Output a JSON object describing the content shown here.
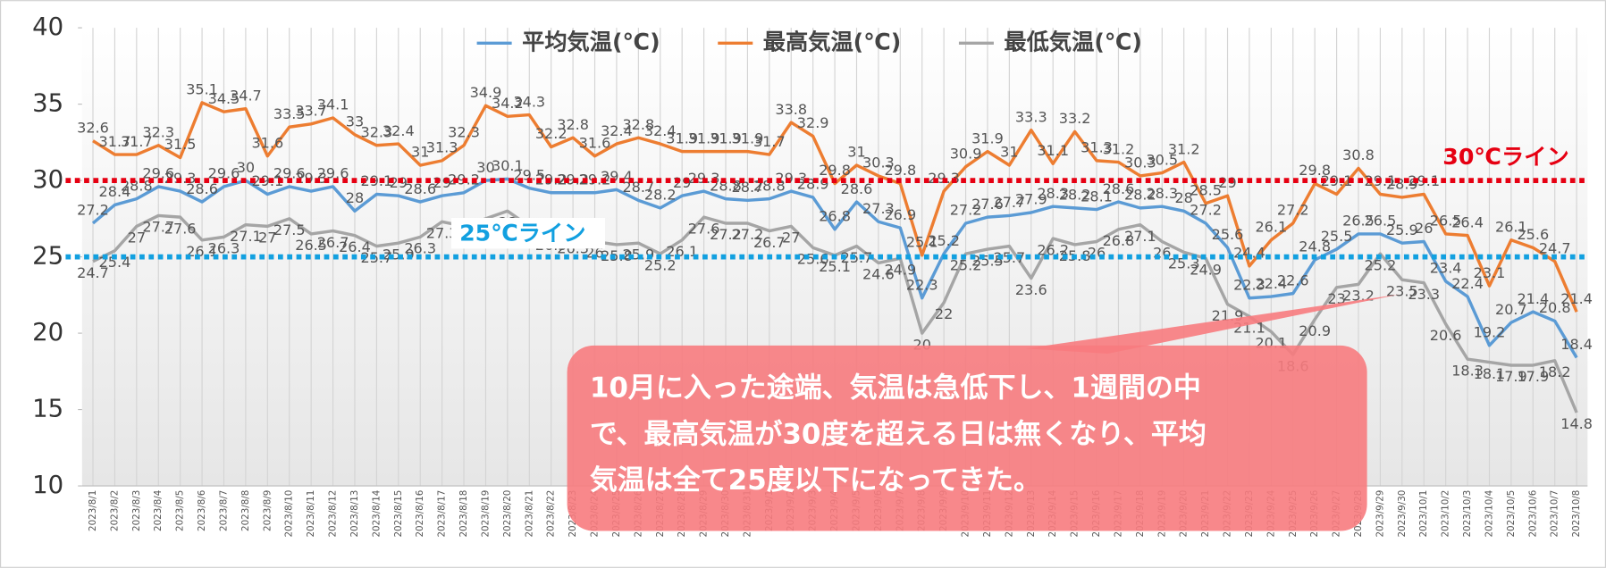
{
  "chart_data": {
    "type": "line",
    "categories": [
      "2023/8/1",
      "2023/8/2",
      "2023/8/3",
      "2023/8/4",
      "2023/8/5",
      "2023/8/6",
      "2023/8/7",
      "2023/8/8",
      "2023/8/9",
      "2023/8/10",
      "2023/8/11",
      "2023/8/12",
      "2023/8/13",
      "2023/8/14",
      "2023/8/15",
      "2023/8/16",
      "2023/8/17",
      "2023/8/18",
      "2023/8/19",
      "2023/8/20",
      "2023/8/21",
      "2023/8/22",
      "2023/8/23",
      "2023/8/24",
      "2023/8/25",
      "2023/8/26",
      "2023/8/27",
      "2023/8/28",
      "2023/8/29",
      "2023/8/30",
      "2023/8/31",
      "2023/9/1",
      "2023/9/2",
      "2023/9/3",
      "2023/9/4",
      "2023/9/5",
      "2023/9/6",
      "2023/9/7",
      "2023/9/8",
      "2023/9/9",
      "2023/9/10",
      "2023/9/11",
      "2023/9/12",
      "2023/9/13",
      "2023/9/14",
      "2023/9/15",
      "2023/9/16",
      "2023/9/17",
      "2023/9/18",
      "2023/9/19",
      "2023/9/20",
      "2023/9/21",
      "2023/9/22",
      "2023/9/23",
      "2023/9/24",
      "2023/9/25",
      "2023/9/26",
      "2023/9/27",
      "2023/9/28",
      "2023/9/29",
      "2023/9/30",
      "2023/10/1",
      "2023/10/2",
      "2023/10/3",
      "2023/10/4",
      "2023/10/5",
      "2023/10/6",
      "2023/10/7",
      "2023/10/8"
    ],
    "series": [
      {
        "name": "平均気温(℃)",
        "color": "#5b9bd5",
        "values": [
          27.2,
          28.4,
          28.8,
          29.6,
          29.3,
          28.6,
          29.6,
          30,
          29.1,
          29.6,
          29.3,
          29.6,
          28,
          29.1,
          29,
          28.6,
          29,
          29.2,
          30,
          30.1,
          29.5,
          29.2,
          29.2,
          29.2,
          29.4,
          28.7,
          28.2,
          29,
          29.3,
          28.8,
          28.7,
          28.8,
          29.3,
          28.9,
          26.8,
          28.6,
          27.3,
          26.9,
          22.3,
          25.2,
          27.2,
          27.6,
          27.7,
          27.9,
          28.3,
          28.2,
          28.1,
          28.6,
          28.2,
          28.3,
          28,
          27.2,
          25.6,
          22.3,
          22.4,
          22.6,
          24.8,
          25.5,
          26.5,
          26.5,
          25.9,
          26,
          23.4,
          22.4,
          19.2,
          20.7,
          21.4,
          20.8,
          18.4
        ]
      },
      {
        "name": "最高気温(℃)",
        "color": "#ed7d31",
        "values": [
          32.6,
          31.7,
          31.7,
          32.3,
          31.5,
          35.1,
          34.5,
          34.7,
          31.6,
          33.5,
          33.7,
          34.1,
          33,
          32.3,
          32.4,
          31,
          31.3,
          32.3,
          34.9,
          34.2,
          34.3,
          32.2,
          32.8,
          31.6,
          32.4,
          32.8,
          32.4,
          31.9,
          31.9,
          31.9,
          31.9,
          31.7,
          33.8,
          32.9,
          29.8,
          31,
          30.3,
          29.8,
          25.1,
          29.3,
          30.9,
          31.9,
          31,
          33.3,
          31.1,
          33.2,
          31.3,
          31.2,
          30.3,
          30.5,
          31.2,
          28.5,
          29,
          24.4,
          26.1,
          27.2,
          29.8,
          29.1,
          30.8,
          29.1,
          28.9,
          29.1,
          26.5,
          26.4,
          23.1,
          26.1,
          25.6,
          24.7,
          21.4
        ]
      },
      {
        "name": "最低気温(℃)",
        "color": "#a5a5a5",
        "values": [
          24.7,
          25.4,
          27,
          27.7,
          27.6,
          26.1,
          26.3,
          27.1,
          27,
          27.5,
          26.5,
          26.7,
          26.4,
          25.7,
          25.9,
          26.3,
          27.3,
          27,
          27.5,
          28,
          27,
          26.5,
          26.3,
          26,
          25.8,
          25.9,
          25.2,
          26.1,
          27.6,
          27.2,
          27.2,
          26.7,
          27,
          25.6,
          25.1,
          25.7,
          24.6,
          24.9,
          20,
          22,
          25.2,
          25.5,
          25.7,
          23.6,
          26.2,
          25.8,
          26,
          26.8,
          27.1,
          26,
          25.3,
          24.9,
          21.9,
          21.1,
          20.1,
          18.6,
          20.9,
          23,
          23.2,
          25.2,
          23.5,
          23.3,
          20.6,
          18.3,
          18.1,
          17.9,
          17.9,
          18.2,
          14.8
        ]
      }
    ],
    "ylim": [
      10,
      40
    ],
    "yticks": [
      10,
      15,
      20,
      25,
      30,
      35,
      40
    ],
    "reference_lines": [
      {
        "value": 30,
        "label": "30℃ライン",
        "color": "#e60012"
      },
      {
        "value": 25,
        "label": "25℃ライン",
        "color": "#12a0e0"
      }
    ],
    "annotation": {
      "lines": [
        "10月に入った途端、気温は急低下し、1週間の中",
        "で、最高気温が30度を超える日は無くなり、平均",
        "気温は全て25度以下になってきた。"
      ],
      "color": "#f77b7e"
    }
  }
}
